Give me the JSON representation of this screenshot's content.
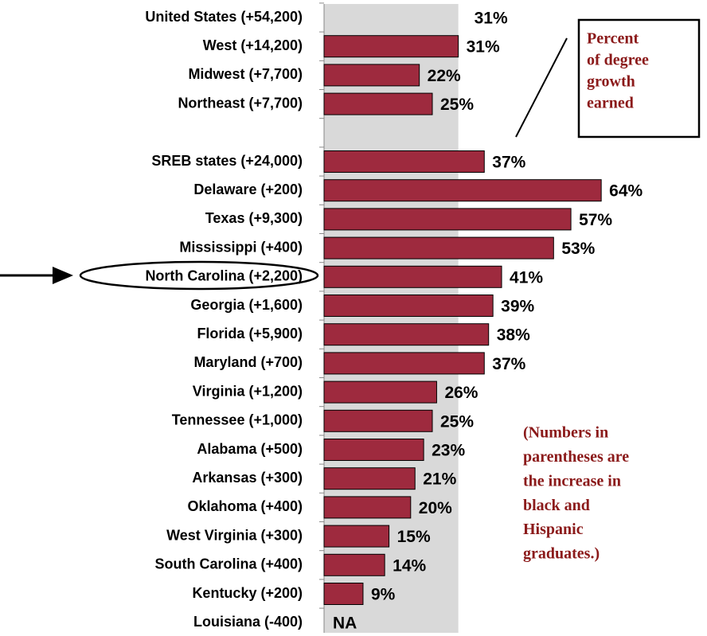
{
  "chart_data": {
    "type": "bar",
    "orientation": "horizontal",
    "categories": [
      "United States (+54,200)",
      "West (+14,200)",
      "Midwest (+7,700)",
      "Northeast (+7,700)",
      null,
      "SREB states (+24,000)",
      "Delaware (+200)",
      "Texas (+9,300)",
      "Mississippi (+400)",
      "North Carolina (+2,200)",
      "Georgia (+1,600)",
      "Florida (+5,900)",
      "Maryland (+700)",
      "Virginia (+1,200)",
      "Tennessee (+1,000)",
      "Alabama (+500)",
      "Arkansas (+300)",
      "Oklahoma (+400)",
      "West Virginia (+300)",
      "South Carolina (+400)",
      "Kentucky (+200)",
      "Louisiana (-400)"
    ],
    "values": [
      31,
      31,
      22,
      25,
      null,
      37,
      64,
      57,
      53,
      41,
      39,
      38,
      37,
      26,
      25,
      23,
      21,
      20,
      15,
      14,
      9,
      null
    ],
    "value_labels": [
      "31%",
      "31%",
      "22%",
      "25%",
      null,
      "37%",
      "64%",
      "57%",
      "53%",
      "41%",
      "39%",
      "38%",
      "37%",
      "26%",
      "25%",
      "23%",
      "21%",
      "20%",
      "15%",
      "14%",
      "9%",
      "NA"
    ],
    "color": "#9e2a3e",
    "reference_color": "#d9d9d9",
    "annotations": {
      "box": [
        "Percent",
        "of degree",
        "growth",
        "earned"
      ],
      "note": [
        "(Numbers in",
        "parentheses are",
        "the increase in",
        "black and",
        "Hispanic",
        "graduates.)"
      ]
    }
  }
}
